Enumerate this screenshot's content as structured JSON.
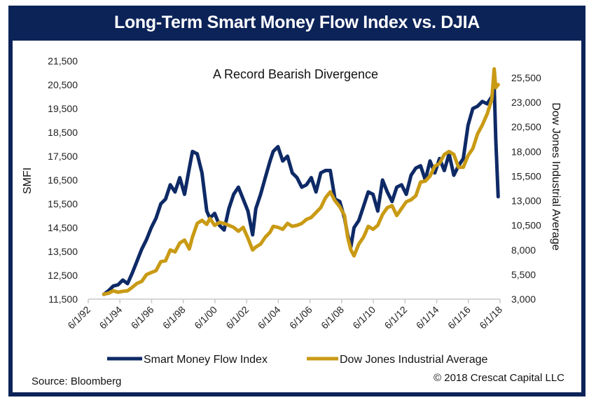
{
  "header": {
    "title": "Long-Term Smart Money Flow Index vs. DJIA"
  },
  "footer": {
    "source": "Source: Bloomberg",
    "copyright": "© 2018 Crescat Capital LLC"
  },
  "colors": {
    "frame": "#0c2358",
    "smfi": "#0e2a66",
    "djia": "#c99a14",
    "axis": "#c8c8c8"
  },
  "chart_data": {
    "type": "line",
    "title": "A Record Bearish Divergence",
    "xlabel": "",
    "ylabel": "SMFI",
    "y2label": "Dow Jones Industrial Average",
    "x_tick_labels": [
      "6/1/92",
      "6/1/94",
      "6/1/96",
      "6/1/98",
      "6/1/00",
      "6/1/02",
      "6/1/04",
      "6/1/06",
      "6/1/08",
      "6/1/10",
      "6/1/12",
      "6/1/14",
      "6/1/16",
      "6/1/18"
    ],
    "xlim": [
      1992.42,
      2018.42
    ],
    "ylim": [
      11500,
      21500
    ],
    "y_tick_labels": [
      "11,500",
      "12,500",
      "13,500",
      "14,500",
      "15,500",
      "16,500",
      "17,500",
      "18,500",
      "19,500",
      "20,500",
      "21,500"
    ],
    "y2lim": [
      3000,
      25500
    ],
    "y2_tick_labels": [
      "3,000",
      "5,500",
      "8,000",
      "10,500",
      "13,000",
      "15,500",
      "18,000",
      "20,500",
      "23,000",
      "25,500"
    ],
    "grid": false,
    "legend": "bottom",
    "series": [
      {
        "name": "Smart Money Flow Index",
        "axis": "left",
        "x": [
          1993.4,
          1993.7,
          1994.0,
          1994.3,
          1994.6,
          1994.9,
          1995.2,
          1995.5,
          1995.8,
          1996.1,
          1996.4,
          1996.7,
          1997.0,
          1997.3,
          1997.6,
          1997.9,
          1998.2,
          1998.5,
          1998.8,
          1999.0,
          1999.3,
          1999.6,
          1999.9,
          2000.1,
          2000.4,
          2000.7,
          2001.0,
          2001.3,
          2001.6,
          2001.9,
          2002.2,
          2002.5,
          2002.8,
          2003.0,
          2003.3,
          2003.6,
          2003.9,
          2004.1,
          2004.4,
          2004.7,
          2005.0,
          2005.3,
          2005.6,
          2005.9,
          2006.2,
          2006.5,
          2006.8,
          2007.1,
          2007.4,
          2007.7,
          2008.0,
          2008.3,
          2008.6,
          2008.8,
          2009.0,
          2009.2,
          2009.5,
          2009.8,
          2010.1,
          2010.4,
          2010.7,
          2011.0,
          2011.3,
          2011.6,
          2011.9,
          2012.2,
          2012.5,
          2012.8,
          2013.1,
          2013.4,
          2013.7,
          2014.0,
          2014.3,
          2014.6,
          2014.9,
          2015.2,
          2015.5,
          2015.8,
          2016.1,
          2016.4,
          2016.7,
          2017.0,
          2017.3,
          2017.6,
          2017.9,
          2018.05,
          2018.15,
          2018.3
        ],
        "values": [
          11700,
          11850,
          12050,
          12100,
          12300,
          12150,
          12600,
          13100,
          13600,
          14000,
          14500,
          14900,
          15500,
          15700,
          16300,
          16000,
          16600,
          15900,
          17000,
          17700,
          17600,
          16800,
          15200,
          14900,
          15100,
          14600,
          14400,
          15300,
          15900,
          16200,
          15700,
          15200,
          14200,
          15300,
          15900,
          16600,
          17300,
          17700,
          17900,
          17300,
          17500,
          16800,
          16600,
          16200,
          16300,
          16600,
          16000,
          16800,
          16900,
          16900,
          15700,
          15600,
          14900,
          14200,
          13700,
          14500,
          14800,
          15400,
          16000,
          15900,
          15200,
          16500,
          16000,
          15600,
          16200,
          16300,
          15900,
          16700,
          17000,
          17100,
          16500,
          17300,
          16800,
          17400,
          16900,
          17600,
          16700,
          17100,
          17400,
          18800,
          19500,
          19600,
          19800,
          19700,
          20000,
          20500,
          18200,
          15800
        ]
      },
      {
        "name": "Dow Jones Industrial Average",
        "axis": "right",
        "x": [
          1993.4,
          1993.7,
          1994.0,
          1994.3,
          1994.6,
          1994.9,
          1995.2,
          1995.5,
          1995.8,
          1996.1,
          1996.4,
          1996.7,
          1997.0,
          1997.3,
          1997.6,
          1997.9,
          1998.2,
          1998.5,
          1998.8,
          1999.0,
          1999.3,
          1999.6,
          1999.9,
          2000.1,
          2000.4,
          2000.7,
          2001.0,
          2001.3,
          2001.6,
          2001.9,
          2002.2,
          2002.5,
          2002.8,
          2003.0,
          2003.3,
          2003.6,
          2003.9,
          2004.1,
          2004.4,
          2004.7,
          2005.0,
          2005.3,
          2005.6,
          2005.9,
          2006.2,
          2006.5,
          2006.8,
          2007.1,
          2007.4,
          2007.7,
          2008.0,
          2008.3,
          2008.6,
          2008.8,
          2009.0,
          2009.2,
          2009.5,
          2009.8,
          2010.1,
          2010.4,
          2010.7,
          2011.0,
          2011.3,
          2011.6,
          2011.9,
          2012.2,
          2012.5,
          2012.8,
          2013.1,
          2013.4,
          2013.7,
          2014.0,
          2014.3,
          2014.6,
          2014.9,
          2015.2,
          2015.5,
          2015.8,
          2016.1,
          2016.4,
          2016.7,
          2017.0,
          2017.3,
          2017.6,
          2017.9,
          2018.05,
          2018.15,
          2018.3
        ],
        "values": [
          3500,
          3600,
          3850,
          3700,
          3800,
          3850,
          4200,
          4600,
          4800,
          5500,
          5700,
          5900,
          6800,
          6900,
          8000,
          7800,
          8700,
          9000,
          8100,
          9300,
          10700,
          11000,
          10600,
          11200,
          10500,
          10800,
          10700,
          10500,
          10300,
          9900,
          10300,
          9200,
          8000,
          8300,
          8600,
          9300,
          9800,
          10400,
          10300,
          10100,
          10700,
          10400,
          10500,
          10700,
          11100,
          11300,
          11800,
          12300,
          13300,
          13900,
          13000,
          12400,
          11500,
          9300,
          8000,
          7400,
          8600,
          9300,
          10400,
          10100,
          10500,
          11600,
          12300,
          12500,
          11500,
          12200,
          12900,
          13100,
          13500,
          14900,
          15000,
          15500,
          16500,
          16800,
          17700,
          18000,
          17700,
          16400,
          16400,
          17600,
          18300,
          19800,
          20700,
          21800,
          23300,
          26400,
          24500,
          24800
        ]
      }
    ]
  }
}
